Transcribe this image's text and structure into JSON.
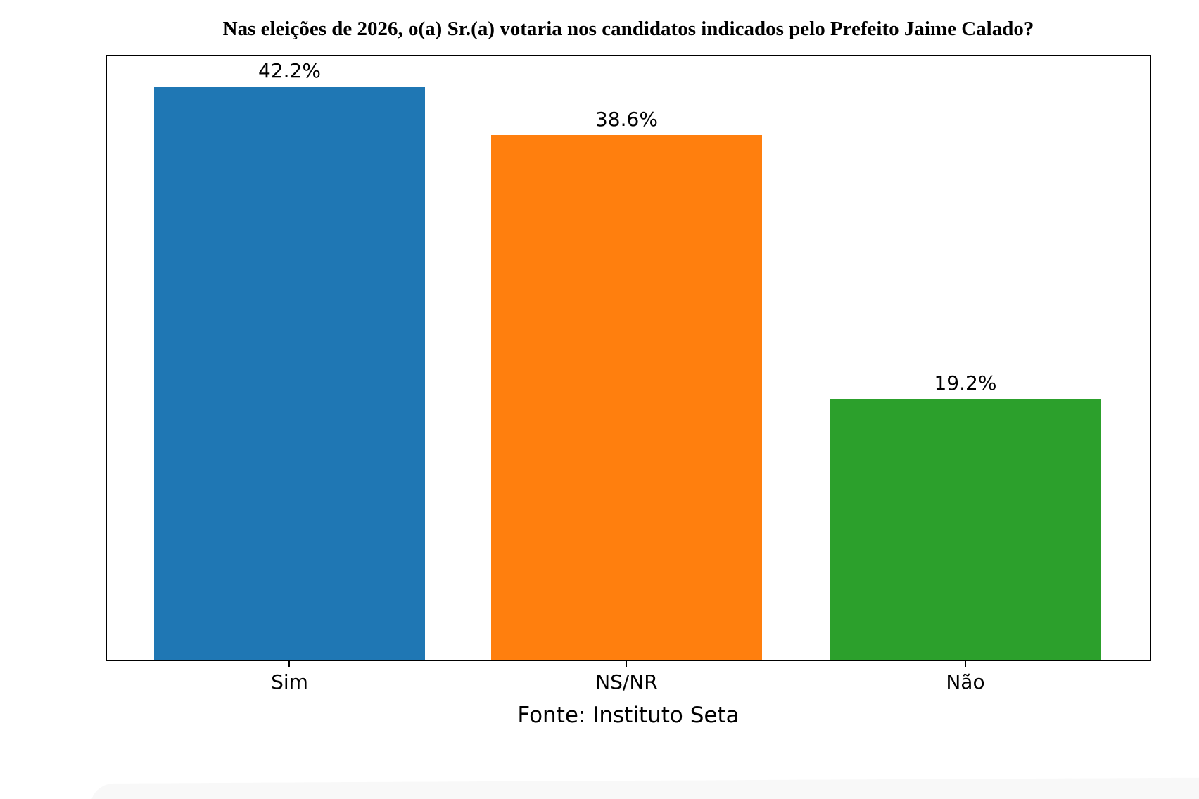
{
  "chart_data": {
    "type": "bar",
    "title": "Nas eleições de 2026, o(a) Sr.(a) votaria nos candidatos indicados pelo Prefeito Jaime Calado?",
    "categories": [
      "Sim",
      "NS/NR",
      "Não"
    ],
    "values": [
      42.2,
      38.6,
      19.2
    ],
    "value_labels": [
      "42.2%",
      "38.6%",
      "19.2%"
    ],
    "bar_colors": [
      "#1f77b4",
      "#ff7f0e",
      "#2ca02c"
    ],
    "xlabel": "Fonte: Instituto Seta",
    "ylabel": "",
    "ylim": [
      0,
      44.4
    ],
    "grid": false,
    "legend_position": "none",
    "frame_color": "#000000",
    "background_color": "#ffffff"
  }
}
